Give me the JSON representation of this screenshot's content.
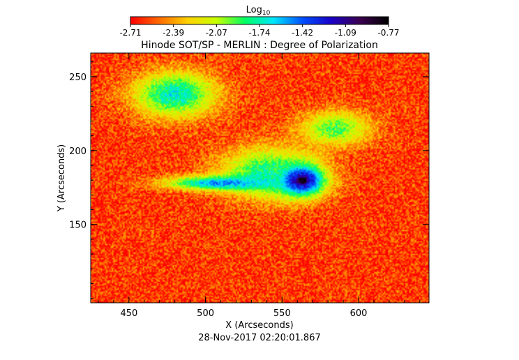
{
  "chart_data": {
    "type": "heatmap",
    "title": "Hinode SOT/SP - MERLIN : Degree of Polarization",
    "xlabel": "X (Arcseconds)",
    "ylabel": "Y (Arcseconds)",
    "timestamp": "28-Nov-2017 02:20:01.867",
    "colorbar": {
      "label_base": "Log",
      "label_sub": "10",
      "ticks": [
        "-2.71",
        "-2.39",
        "-2.07",
        "-1.74",
        "-1.42",
        "-1.09",
        "-0.77"
      ],
      "range": [
        -2.71,
        -0.77
      ],
      "colormap": [
        "#ff0000",
        "#ff6a00",
        "#ffd200",
        "#c8ff00",
        "#00ff64",
        "#00e6ff",
        "#0050ff",
        "#1a00c8",
        "#3c0050",
        "#000000"
      ]
    },
    "xlim": [
      425,
      646
    ],
    "ylim": [
      97,
      266
    ],
    "xticks": [
      {
        "value": 450,
        "label": "450"
      },
      {
        "value": 500,
        "label": "500"
      },
      {
        "value": 550,
        "label": "550"
      },
      {
        "value": 600,
        "label": "600"
      }
    ],
    "yticks": [
      {
        "value": 150,
        "label": "150"
      },
      {
        "value": 200,
        "label": "200"
      },
      {
        "value": 250,
        "label": "250"
      }
    ],
    "features": [
      {
        "name": "sunspot",
        "x": 563,
        "y": 180,
        "rx": 11,
        "ry": 8,
        "log10": -0.77
      },
      {
        "name": "penumbra",
        "x": 562,
        "y": 180,
        "rx": 21,
        "ry": 15,
        "log10": -1.25
      },
      {
        "name": "plage-west",
        "x": 540,
        "y": 185,
        "rx": 40,
        "ry": 22,
        "log10": -1.8
      },
      {
        "name": "network-lane",
        "x": 510,
        "y": 178,
        "rx": 45,
        "ry": 6,
        "log10": -1.5
      },
      {
        "name": "network-north",
        "x": 480,
        "y": 238,
        "rx": 35,
        "ry": 20,
        "log10": -1.7
      },
      {
        "name": "network-ne",
        "x": 585,
        "y": 215,
        "rx": 30,
        "ry": 15,
        "log10": -1.9
      }
    ],
    "background_log10": -2.6
  }
}
